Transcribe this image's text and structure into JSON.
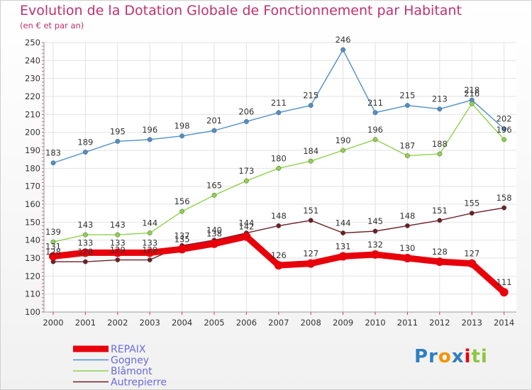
{
  "chart_data": {
    "type": "line",
    "title": "Evolution de la Dotation Globale de Fonctionnement par Habitant",
    "subtitle": "(en € et par an)",
    "x": [
      "2000",
      "2001",
      "2002",
      "2003",
      "2004",
      "2005",
      "2006",
      "2007",
      "2008",
      "2009",
      "2010",
      "2011",
      "2012",
      "2013",
      "2014"
    ],
    "ylim": [
      100,
      250
    ],
    "yticks": [
      100,
      110,
      120,
      130,
      140,
      150,
      160,
      170,
      180,
      190,
      200,
      210,
      220,
      230,
      240,
      250
    ],
    "grid": true,
    "legend": "bottom-left",
    "series": [
      {
        "name": "REPAIX",
        "color": "#e8000b",
        "values": [
          131,
          133,
          133,
          133,
          135,
          138,
          142,
          126,
          127,
          131,
          132,
          130,
          128,
          127,
          111
        ]
      },
      {
        "name": "Gogney",
        "color": "#4f8fc8",
        "values": [
          183,
          189,
          195,
          196,
          198,
          201,
          206,
          211,
          215,
          246,
          211,
          215,
          213,
          218,
          202
        ]
      },
      {
        "name": "Blâmont",
        "color": "#8ed24a",
        "values": [
          139,
          143,
          143,
          144,
          156,
          165,
          173,
          180,
          184,
          190,
          196,
          187,
          188,
          216,
          196
        ]
      },
      {
        "name": "Autrepierre",
        "color": "#6b1f28",
        "values": [
          128,
          128,
          129,
          129,
          137,
          140,
          144,
          148,
          151,
          144,
          145,
          148,
          151,
          155,
          158
        ]
      }
    ]
  },
  "logo": {
    "parts": [
      "Pr",
      "o",
      "x",
      "i",
      "ti"
    ],
    "colors": [
      "#2f7fc1",
      "#f29400",
      "#2f7fc1",
      "#e8000b",
      "#8dc63f"
    ]
  }
}
